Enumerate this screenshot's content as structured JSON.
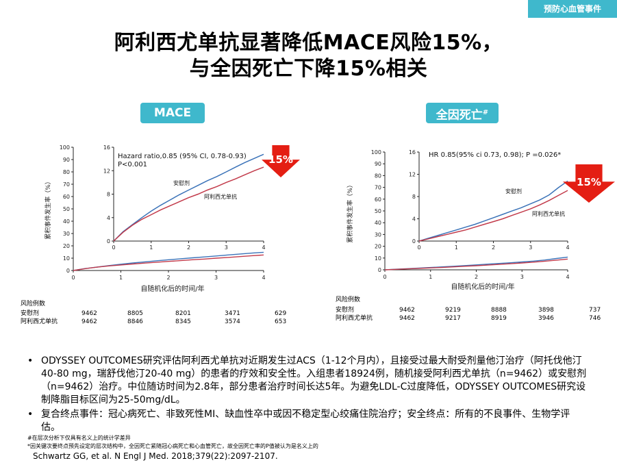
{
  "header_tag": "预防心血管事件",
  "title_line1": "阿利西尤单抗显著降低MACE风险15%，",
  "title_line2": "与全因死亡下降15%相关",
  "chart_data": [
    {
      "type": "line",
      "panel_title": "MACE",
      "ylabel": "累积事件发生率（%）",
      "xlabel": "自随机化后的时间/年",
      "ylim": [
        0,
        100
      ],
      "yticks": [
        0,
        10,
        20,
        30,
        40,
        50,
        60,
        70,
        80,
        90,
        100
      ],
      "xlim": [
        0,
        4
      ],
      "xticks": [
        0,
        1,
        2,
        3,
        4
      ],
      "inset": {
        "ylim": [
          0,
          16
        ],
        "yticks": [
          0,
          4,
          8,
          12,
          16
        ],
        "xlim": [
          0,
          4
        ],
        "xticks": [
          0,
          1,
          2,
          3,
          4
        ],
        "annotation": [
          "Hazard ratio,0.85 (95% CI, 0.78-0.93)",
          "P<0.001"
        ]
      },
      "series": [
        {
          "name": "安慰剂",
          "color": "#3a72b8",
          "x": [
            0,
            0.25,
            0.5,
            0.75,
            1,
            1.25,
            1.5,
            1.75,
            2,
            2.25,
            2.5,
            2.75,
            3,
            3.25,
            3.5,
            3.75,
            4
          ],
          "y": [
            0,
            1.6,
            2.8,
            4.0,
            5.1,
            6.1,
            7.0,
            7.9,
            8.7,
            9.5,
            10.3,
            11.0,
            11.8,
            12.6,
            13.4,
            14.1,
            14.8
          ]
        },
        {
          "name": "阿利西尤单抗",
          "color": "#c23a4a",
          "x": [
            0,
            0.25,
            0.5,
            0.75,
            1,
            1.25,
            1.5,
            1.75,
            2,
            2.25,
            2.5,
            2.75,
            3,
            3.25,
            3.5,
            3.75,
            4
          ],
          "y": [
            0,
            1.5,
            2.7,
            3.7,
            4.5,
            5.3,
            6.0,
            6.7,
            7.4,
            8.0,
            8.7,
            9.3,
            10.0,
            10.6,
            11.3,
            12.0,
            12.6
          ]
        }
      ],
      "reduction_label": "15%",
      "risk_table": {
        "header": "风险例数",
        "rows": [
          {
            "label": "安慰剂",
            "values": [
              "9462",
              "8805",
              "8201",
              "3471",
              "629"
            ]
          },
          {
            "label": "阿利西尤单抗",
            "values": [
              "9462",
              "8846",
              "8345",
              "3574",
              "653"
            ]
          }
        ]
      }
    },
    {
      "type": "line",
      "panel_title": "全因死亡",
      "panel_title_sup": "#",
      "ylabel": "累积事件发生率（%）",
      "xlabel": "自随机化后的时间/年",
      "ylim": [
        0,
        100
      ],
      "yticks": [
        0,
        10,
        20,
        30,
        40,
        50,
        60,
        70,
        80,
        90,
        100
      ],
      "xlim": [
        0,
        4
      ],
      "xticks": [
        0,
        1,
        2,
        3,
        4
      ],
      "inset": {
        "ylim": [
          0,
          16
        ],
        "yticks": [
          0,
          4,
          8,
          12,
          16
        ],
        "xlim": [
          0,
          4
        ],
        "xticks": [
          0,
          1,
          2,
          3,
          4
        ],
        "annotation": [
          "HR 0.85(95% ci 0.73, 0.98); P =0.026*"
        ]
      },
      "series": [
        {
          "name": "安慰剂",
          "color": "#3a72b8",
          "x": [
            0,
            0.25,
            0.5,
            0.75,
            1,
            1.25,
            1.5,
            1.75,
            2,
            2.25,
            2.5,
            2.75,
            3,
            3.25,
            3.5,
            3.75,
            4
          ],
          "y": [
            0,
            0.5,
            1.0,
            1.5,
            2.0,
            2.5,
            3.0,
            3.6,
            4.2,
            4.8,
            5.4,
            6.0,
            6.7,
            7.4,
            8.3,
            9.6,
            10.8
          ]
        },
        {
          "name": "阿利西尤单抗",
          "color": "#c23a4a",
          "x": [
            0,
            0.25,
            0.5,
            0.75,
            1,
            1.25,
            1.5,
            1.75,
            2,
            2.25,
            2.5,
            2.75,
            3,
            3.25,
            3.5,
            3.75,
            4
          ],
          "y": [
            0,
            0.4,
            0.8,
            1.2,
            1.6,
            2.0,
            2.5,
            3.0,
            3.5,
            4.0,
            4.6,
            5.2,
            5.8,
            6.5,
            7.3,
            8.2,
            9.1
          ]
        }
      ],
      "reduction_label": "15%",
      "risk_table": {
        "header": "风险例数",
        "rows": [
          {
            "label": "安慰剂",
            "values": [
              "9462",
              "9219",
              "8888",
              "3898",
              "737"
            ]
          },
          {
            "label": "阿利西尤单抗",
            "values": [
              "9462",
              "9217",
              "8919",
              "3946",
              "746"
            ]
          }
        ]
      }
    }
  ],
  "bullets": [
    "ODYSSEY OUTCOMES研究评估阿利西尤单抗对近期发生过ACS（1-12个月内），且接受过最大耐受剂量他汀治疗（阿托伐他汀40-80 mg，瑞舒伐他汀20-40 mg）的患者的疗效和安全性。入组患者18924例，随机接受阿利西尤单抗（n=9462）或安慰剂（n=9462）治疗。中位随访时间为2.8年，部分患者治疗时间长达5年。为避免LDL-C过度降低，ODYSSEY OUTCOMES研究设制降脂目标区间为25-50mg/dL。",
    "复合终点事件：冠心病死亡、非致死性MI、缺血性卒中或因不稳定型心绞痛住院治疗；安全终点：所有的不良事件、生物学评估。"
  ],
  "footnotes": [
    "#在层次分析下仅具有名义上的统计学差异",
    "*因关键次要终点预先设定的层次结构中，全因死亡紧随冠心病死亡和心血管死亡，故全因死亡率的P值被认为是名义上的"
  ],
  "reference": "Schwartz GG, et al. N Engl J Med. 2018;379(22):2097-2107."
}
